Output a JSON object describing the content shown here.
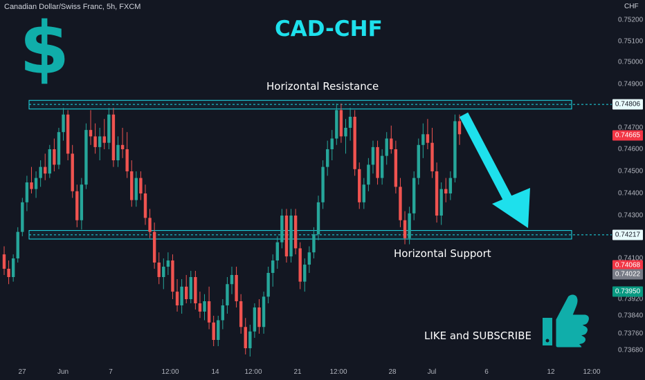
{
  "header": {
    "symbol_line": "Canadian Dollar/Swiss Franc, 5h, FXCM"
  },
  "overlay": {
    "title": "CAD-CHF",
    "dollar_sign": "$",
    "resistance_label": "Horizontal Resistance",
    "support_label": "Horizontal Support",
    "cta_text": "LIKE and SUBSCRIBE",
    "thumb_icon": "thumbs-up-icon",
    "accent_color": "#1ee0ec",
    "dollar_color": "#10aeaa"
  },
  "chart_data": {
    "type": "candlestick",
    "instrument": "Canadian Dollar/Swiss Franc",
    "timeframe": "5h",
    "source": "FXCM",
    "y_axis": {
      "currency": "CHF",
      "ylim": [
        0.7363,
        0.7527
      ],
      "ticks": [
        "0.75200",
        "0.75100",
        "0.75000",
        "0.74900",
        "0.74700",
        "0.74600",
        "0.74500",
        "0.74400",
        "0.74300",
        "0.74100",
        "0.73920",
        "0.73840",
        "0.73760",
        "0.73680"
      ]
    },
    "x_axis": {
      "ticks": [
        "27",
        "Jun",
        "7",
        "12:00",
        "14",
        "12:00",
        "21",
        "12:00",
        "28",
        "Jul",
        "6",
        "12",
        "12:00"
      ]
    },
    "price_badges": [
      {
        "value": "0.74806",
        "kind": "resistance-line",
        "color": "#e8fbfc",
        "text_color": "#131722"
      },
      {
        "value": "0.74665",
        "kind": "last-price",
        "color": "#f23645",
        "text_color": "#ffffff"
      },
      {
        "value": "0.74217",
        "kind": "support-line",
        "color": "#e8fbfc",
        "text_color": "#131722"
      },
      {
        "value": "0.74068",
        "kind": "marker",
        "color": "#f23645",
        "text_color": "#ffffff"
      },
      {
        "value": "0.74022",
        "kind": "marker",
        "color": "#787b86",
        "text_color": "#ffffff"
      },
      {
        "value": "0.73950",
        "kind": "marker",
        "color": "#089981",
        "text_color": "#ffffff"
      }
    ],
    "zones": [
      {
        "name": "resistance",
        "top": 0.74825,
        "bottom": 0.74785,
        "line": 0.74806
      },
      {
        "name": "support",
        "top": 0.74236,
        "bottom": 0.74196,
        "line": 0.74217
      }
    ],
    "candles": [
      [
        0.7412,
        0.7416,
        0.7402,
        0.7405
      ],
      [
        0.7405,
        0.7409,
        0.7398,
        0.7401
      ],
      [
        0.7401,
        0.7412,
        0.7399,
        0.741
      ],
      [
        0.741,
        0.7425,
        0.7408,
        0.7423
      ],
      [
        0.7423,
        0.7438,
        0.7421,
        0.7436
      ],
      [
        0.7436,
        0.7448,
        0.7432,
        0.7445
      ],
      [
        0.7445,
        0.7452,
        0.744,
        0.7442
      ],
      [
        0.7442,
        0.745,
        0.7438,
        0.7447
      ],
      [
        0.7447,
        0.7455,
        0.7443,
        0.7452
      ],
      [
        0.7452,
        0.7458,
        0.7446,
        0.7449
      ],
      [
        0.7449,
        0.7462,
        0.7447,
        0.746
      ],
      [
        0.746,
        0.7465,
        0.745,
        0.7453
      ],
      [
        0.7453,
        0.747,
        0.7451,
        0.7468
      ],
      [
        0.7468,
        0.7479,
        0.7464,
        0.7476
      ],
      [
        0.7476,
        0.7478,
        0.7455,
        0.7458
      ],
      [
        0.7458,
        0.7462,
        0.7438,
        0.7441
      ],
      [
        0.7441,
        0.7444,
        0.7425,
        0.7428
      ],
      [
        0.7428,
        0.7447,
        0.7424,
        0.7444
      ],
      [
        0.7444,
        0.7472,
        0.7442,
        0.7469
      ],
      [
        0.7469,
        0.7478,
        0.7462,
        0.7466
      ],
      [
        0.7466,
        0.7472,
        0.7458,
        0.7461
      ],
      [
        0.7461,
        0.747,
        0.7455,
        0.7466
      ],
      [
        0.7466,
        0.7474,
        0.746,
        0.7463
      ],
      [
        0.7463,
        0.7479,
        0.746,
        0.7476
      ],
      [
        0.7476,
        0.7479,
        0.7452,
        0.7455
      ],
      [
        0.7455,
        0.7466,
        0.7452,
        0.7462
      ],
      [
        0.7462,
        0.747,
        0.7456,
        0.746
      ],
      [
        0.746,
        0.7468,
        0.7447,
        0.745
      ],
      [
        0.745,
        0.7455,
        0.7434,
        0.7437
      ],
      [
        0.7437,
        0.745,
        0.7434,
        0.7447
      ],
      [
        0.7447,
        0.745,
        0.7437,
        0.744
      ],
      [
        0.744,
        0.7444,
        0.7426,
        0.7429
      ],
      [
        0.7429,
        0.7433,
        0.742,
        0.7423
      ],
      [
        0.7423,
        0.7427,
        0.7405,
        0.7408
      ],
      [
        0.7408,
        0.7413,
        0.7398,
        0.7401
      ],
      [
        0.7401,
        0.741,
        0.7396,
        0.7406
      ],
      [
        0.7406,
        0.7413,
        0.7402,
        0.7409
      ],
      [
        0.7409,
        0.7412,
        0.7392,
        0.7395
      ],
      [
        0.7395,
        0.74,
        0.7386,
        0.7389
      ],
      [
        0.7389,
        0.74,
        0.7385,
        0.7397
      ],
      [
        0.7397,
        0.7402,
        0.739,
        0.7392
      ],
      [
        0.7392,
        0.7404,
        0.739,
        0.7401
      ],
      [
        0.7401,
        0.7404,
        0.7387,
        0.739
      ],
      [
        0.739,
        0.7395,
        0.7383,
        0.7386
      ],
      [
        0.7386,
        0.7394,
        0.7382,
        0.7391
      ],
      [
        0.7391,
        0.7397,
        0.7378,
        0.7381
      ],
      [
        0.7381,
        0.7384,
        0.737,
        0.7373
      ],
      [
        0.7373,
        0.7384,
        0.737,
        0.7382
      ],
      [
        0.7382,
        0.7392,
        0.7378,
        0.7389
      ],
      [
        0.7389,
        0.7401,
        0.7385,
        0.7398
      ],
      [
        0.7398,
        0.7406,
        0.7394,
        0.7402
      ],
      [
        0.7402,
        0.7406,
        0.7388,
        0.7391
      ],
      [
        0.7391,
        0.7394,
        0.7376,
        0.7379
      ],
      [
        0.7379,
        0.7383,
        0.7366,
        0.7369
      ],
      [
        0.7369,
        0.738,
        0.7365,
        0.7377
      ],
      [
        0.7377,
        0.739,
        0.7374,
        0.7388
      ],
      [
        0.7388,
        0.7392,
        0.7376,
        0.7379
      ],
      [
        0.7379,
        0.7395,
        0.7376,
        0.7393
      ],
      [
        0.7393,
        0.7406,
        0.739,
        0.7403
      ],
      [
        0.7403,
        0.7412,
        0.7397,
        0.7409
      ],
      [
        0.7409,
        0.7421,
        0.7405,
        0.7418
      ],
      [
        0.7418,
        0.7433,
        0.7415,
        0.743
      ],
      [
        0.743,
        0.7433,
        0.7408,
        0.7411
      ],
      [
        0.7411,
        0.7433,
        0.7408,
        0.743
      ],
      [
        0.743,
        0.7433,
        0.7412,
        0.7415
      ],
      [
        0.7415,
        0.7418,
        0.7396,
        0.7399
      ],
      [
        0.7399,
        0.741,
        0.7395,
        0.7407
      ],
      [
        0.7407,
        0.7416,
        0.7403,
        0.7413
      ],
      [
        0.7413,
        0.7425,
        0.741,
        0.7422
      ],
      [
        0.7422,
        0.7439,
        0.7419,
        0.7436
      ],
      [
        0.7436,
        0.7455,
        0.7433,
        0.7452
      ],
      [
        0.7452,
        0.7464,
        0.7448,
        0.746
      ],
      [
        0.746,
        0.7469,
        0.7455,
        0.7465
      ],
      [
        0.7465,
        0.7481,
        0.7462,
        0.7478
      ],
      [
        0.7478,
        0.7481,
        0.7463,
        0.7466
      ],
      [
        0.7466,
        0.7474,
        0.7458,
        0.747
      ],
      [
        0.747,
        0.7479,
        0.7464,
        0.7475
      ],
      [
        0.7475,
        0.7478,
        0.7448,
        0.7451
      ],
      [
        0.7451,
        0.7454,
        0.7433,
        0.7436
      ],
      [
        0.7436,
        0.7447,
        0.7433,
        0.7444
      ],
      [
        0.7444,
        0.7456,
        0.7441,
        0.7453
      ],
      [
        0.7453,
        0.7464,
        0.7449,
        0.7461
      ],
      [
        0.7461,
        0.7464,
        0.7444,
        0.7447
      ],
      [
        0.7447,
        0.746,
        0.7444,
        0.7457
      ],
      [
        0.7457,
        0.7468,
        0.7453,
        0.7465
      ],
      [
        0.7465,
        0.7471,
        0.7458,
        0.746
      ],
      [
        0.746,
        0.7464,
        0.744,
        0.7443
      ],
      [
        0.7443,
        0.7447,
        0.7425,
        0.7428
      ],
      [
        0.7428,
        0.7432,
        0.7417,
        0.742
      ],
      [
        0.742,
        0.7434,
        0.7417,
        0.7431
      ],
      [
        0.7431,
        0.745,
        0.7428,
        0.7447
      ],
      [
        0.7447,
        0.7465,
        0.7444,
        0.7462
      ],
      [
        0.7462,
        0.7472,
        0.7456,
        0.7467
      ],
      [
        0.7467,
        0.7474,
        0.746,
        0.7463
      ],
      [
        0.7463,
        0.747,
        0.7447,
        0.745
      ],
      [
        0.745,
        0.7454,
        0.7427,
        0.743
      ],
      [
        0.743,
        0.7445,
        0.7426,
        0.7442
      ],
      [
        0.7442,
        0.7447,
        0.7436,
        0.744
      ],
      [
        0.744,
        0.745,
        0.7437,
        0.7447
      ],
      [
        0.7447,
        0.7476,
        0.7445,
        0.7473
      ],
      [
        0.7473,
        0.7476,
        0.7462,
        0.7467
      ]
    ]
  }
}
